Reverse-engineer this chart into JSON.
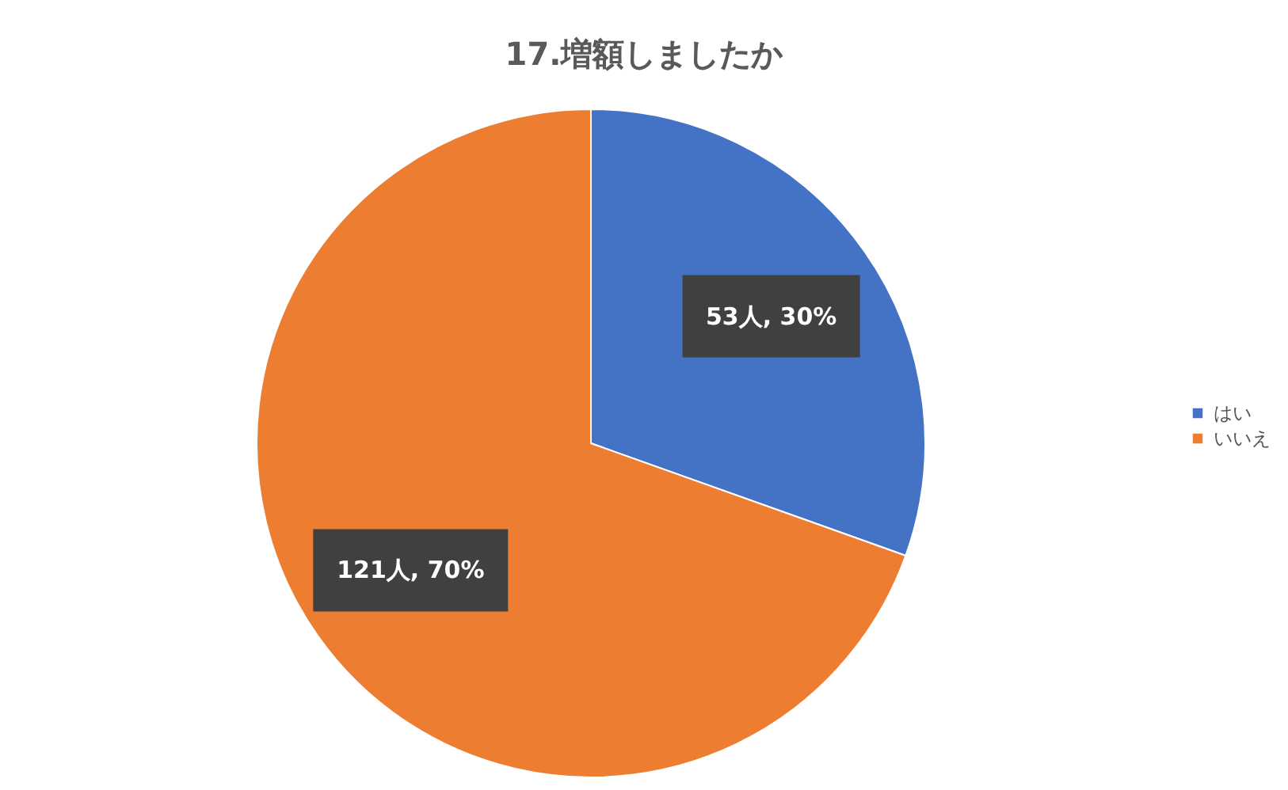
{
  "chart_data": {
    "type": "pie",
    "title": "17.増額しましたか",
    "categories": [
      "はい",
      "いいえ"
    ],
    "values": [
      53,
      121
    ],
    "colors": [
      "#4472c4",
      "#ed7d31"
    ],
    "value_labels": [
      "53人, 30%",
      "121人, 70%"
    ],
    "legend": "right"
  }
}
